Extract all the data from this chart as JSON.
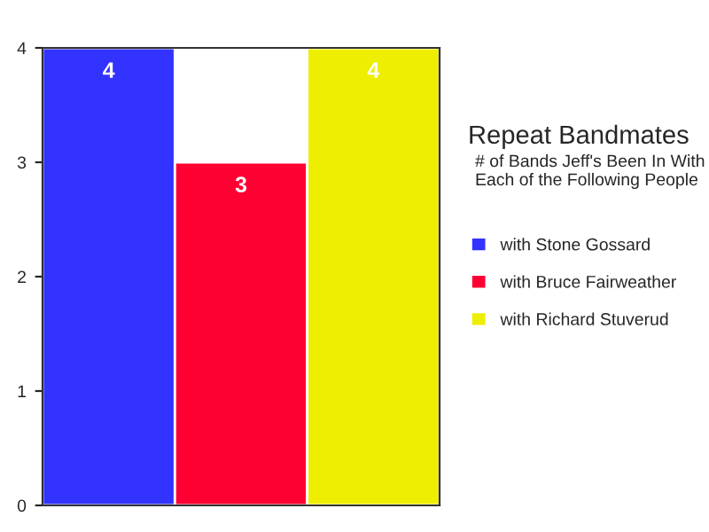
{
  "chart_data": {
    "type": "bar",
    "title": "Repeat Bandmates",
    "subtitle": "# of Bands Jeff's Been In With Each of the Following People",
    "categories": [
      null,
      null,
      null
    ],
    "series": [
      {
        "name": "with Stone Gossard",
        "color": "#3333ff",
        "values": [
          4,
          null,
          null
        ]
      },
      {
        "name": "with Bruce Fairweather",
        "color": "#ff0033",
        "values": [
          null,
          3,
          null
        ]
      },
      {
        "name": "with Richard Stuverud",
        "color": "#eeee00",
        "values": [
          null,
          null,
          4
        ]
      }
    ],
    "ylim": [
      0,
      4
    ],
    "yticks": [
      0,
      1,
      2,
      3,
      4
    ],
    "data_labels": true,
    "grid": false,
    "legend": "right"
  }
}
